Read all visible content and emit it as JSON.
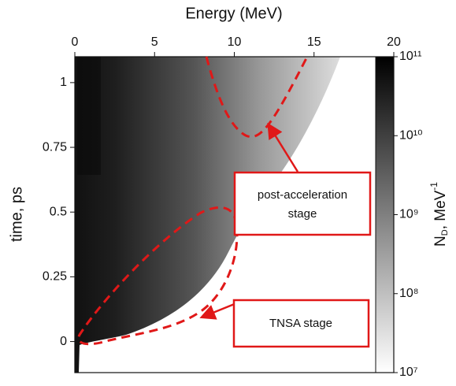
{
  "chart_data": {
    "type": "heatmap",
    "x_label": "Energy (MeV)",
    "y_label": "time, ps",
    "colorbar_label": {
      "main": "N",
      "sub": "D",
      "rest": ", MeV",
      "sup": "-1"
    },
    "xlim": [
      0,
      20
    ],
    "xticks": [
      0,
      5,
      10,
      15,
      20
    ],
    "ylim": [
      -0.12,
      1.1
    ],
    "yticks": [
      0,
      0.25,
      0.5,
      0.75,
      1
    ],
    "clim": [
      10000000,
      100000000000
    ],
    "clog": true,
    "cticks": [
      {
        "value": 10000000,
        "label": "10⁷"
      },
      {
        "value": 100000000,
        "label": "10⁸"
      },
      {
        "value": 1000000000,
        "label": "10⁹"
      },
      {
        "value": 10000000000,
        "label": "10¹⁰"
      },
      {
        "value": 100000000000,
        "label": "10¹¹"
      }
    ],
    "annotations": [
      {
        "lines": [
          "post-acceleration",
          "stage"
        ]
      },
      {
        "lines": [
          "TNSA stage"
        ]
      }
    ]
  }
}
